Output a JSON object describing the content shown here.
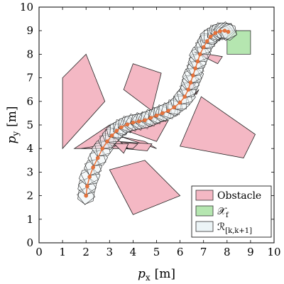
{
  "chart_data": {
    "type": "scatter",
    "xlim": [
      0,
      10
    ],
    "ylim": [
      0,
      10
    ],
    "x_ticks": [
      0,
      1,
      2,
      3,
      4,
      5,
      6,
      7,
      8,
      9,
      10
    ],
    "y_ticks": [
      0,
      1,
      2,
      3,
      4,
      5,
      6,
      7,
      8,
      9,
      10
    ],
    "x_tick_labels": [
      "0",
      "1",
      "2",
      "3",
      "4",
      "5",
      "6",
      "7",
      "8",
      "9",
      "10"
    ],
    "y_tick_labels": [
      "0",
      "1",
      "2",
      "3",
      "4",
      "5",
      "6",
      "7",
      "8",
      "9",
      "10"
    ],
    "xlabel": {
      "sym": "p",
      "sub": "x",
      "unit": "[m]"
    },
    "ylabel": {
      "sym": "p",
      "sub": "y",
      "unit": "[m]"
    },
    "grid": false,
    "legend_position": "bottom-right",
    "colors": {
      "obstacle_fill": "#f4b8c4",
      "obstacle_stroke": "#222222",
      "target_fill": "#b5e6b0",
      "target_stroke": "#333333",
      "reach_fill": "#ecf4f6",
      "reach_stroke": "#1a1a1a",
      "trajectory": "#e8743c"
    },
    "obstacles": [
      [
        [
          1,
          7
        ],
        [
          2,
          8
        ],
        [
          2.8,
          6
        ],
        [
          1,
          4
        ]
      ],
      [
        [
          1.5,
          4
        ],
        [
          3,
          4
        ],
        [
          3,
          5
        ]
      ],
      [
        [
          3.6,
          4.8
        ],
        [
          5.5,
          5.2
        ],
        [
          5,
          4.3
        ]
      ],
      [
        [
          3.5,
          4.5
        ],
        [
          4.5,
          4.3
        ],
        [
          5,
          4
        ]
      ],
      [
        [
          3.3,
          4.3
        ],
        [
          4.8,
          4.2
        ],
        [
          4.6,
          3.9
        ],
        [
          3.6,
          4
        ]
      ],
      [
        [
          3,
          4
        ],
        [
          4,
          4
        ],
        [
          4.2,
          4.2
        ],
        [
          3.2,
          4.3
        ]
      ],
      [
        [
          1.8,
          4
        ],
        [
          3,
          4
        ],
        [
          3,
          4.2
        ]
      ],
      [
        [
          2.8,
          4.2
        ],
        [
          3.8,
          4
        ],
        [
          3.2,
          4.5
        ]
      ],
      [
        [
          3.2,
          4.2
        ],
        [
          3.6,
          3.8
        ],
        [
          3.8,
          4.2
        ]
      ],
      [
        [
          4,
          7.6
        ],
        [
          5.2,
          7.2
        ],
        [
          4.8,
          5.6
        ],
        [
          3.6,
          6.5
        ]
      ],
      [
        [
          6.3,
          6.7
        ],
        [
          6.7,
          6.8
        ],
        [
          6.8,
          7
        ],
        [
          6.5,
          6.5
        ]
      ],
      [
        [
          6.7,
          6.3
        ],
        [
          6.8,
          6.5
        ],
        [
          6.6,
          6.3
        ]
      ],
      [
        [
          7.6,
          7.6
        ],
        [
          7.8,
          7.9
        ],
        [
          6.6,
          8.1
        ]
      ],
      [
        [
          6.9,
          6.2
        ],
        [
          9.2,
          4.6
        ],
        [
          8.7,
          3.6
        ],
        [
          6,
          4.1
        ]
      ],
      [
        [
          3,
          3.1
        ],
        [
          4.5,
          3.5
        ],
        [
          6,
          2
        ],
        [
          4,
          1.2
        ]
      ]
    ],
    "target_set": [
      [
        8,
        8
      ],
      [
        9,
        8
      ],
      [
        9,
        9
      ],
      [
        8,
        9
      ]
    ],
    "trajectory": {
      "x": [
        2,
        2.05,
        2.15,
        2.3,
        2.5,
        2.7,
        2.9,
        3.1,
        3.3,
        3.5,
        3.75,
        4,
        4.25,
        4.5,
        4.75,
        5,
        5.25,
        5.5,
        5.75,
        6,
        6.2,
        6.35,
        6.45,
        6.55,
        6.65,
        6.75,
        6.85,
        7,
        7.15,
        7.3,
        7.5,
        7.7,
        7.9,
        8.05
      ],
      "y": [
        2,
        2.4,
        2.8,
        3.2,
        3.6,
        4,
        4.3,
        4.55,
        4.75,
        4.9,
        5.02,
        5.1,
        5.15,
        5.2,
        5.3,
        5.4,
        5.5,
        5.6,
        5.75,
        5.95,
        6.2,
        6.5,
        6.8,
        7.1,
        7.4,
        7.7,
        8,
        8.3,
        8.55,
        8.75,
        8.9,
        8.98,
        9.0,
        8.95
      ]
    },
    "legend": [
      {
        "key": "obstacle",
        "label": "Obstacle"
      },
      {
        "key": "target",
        "label": "𝒳",
        "sub": "f"
      },
      {
        "key": "reach",
        "label": "ℛ",
        "sub": "[k,k+1]"
      }
    ]
  }
}
